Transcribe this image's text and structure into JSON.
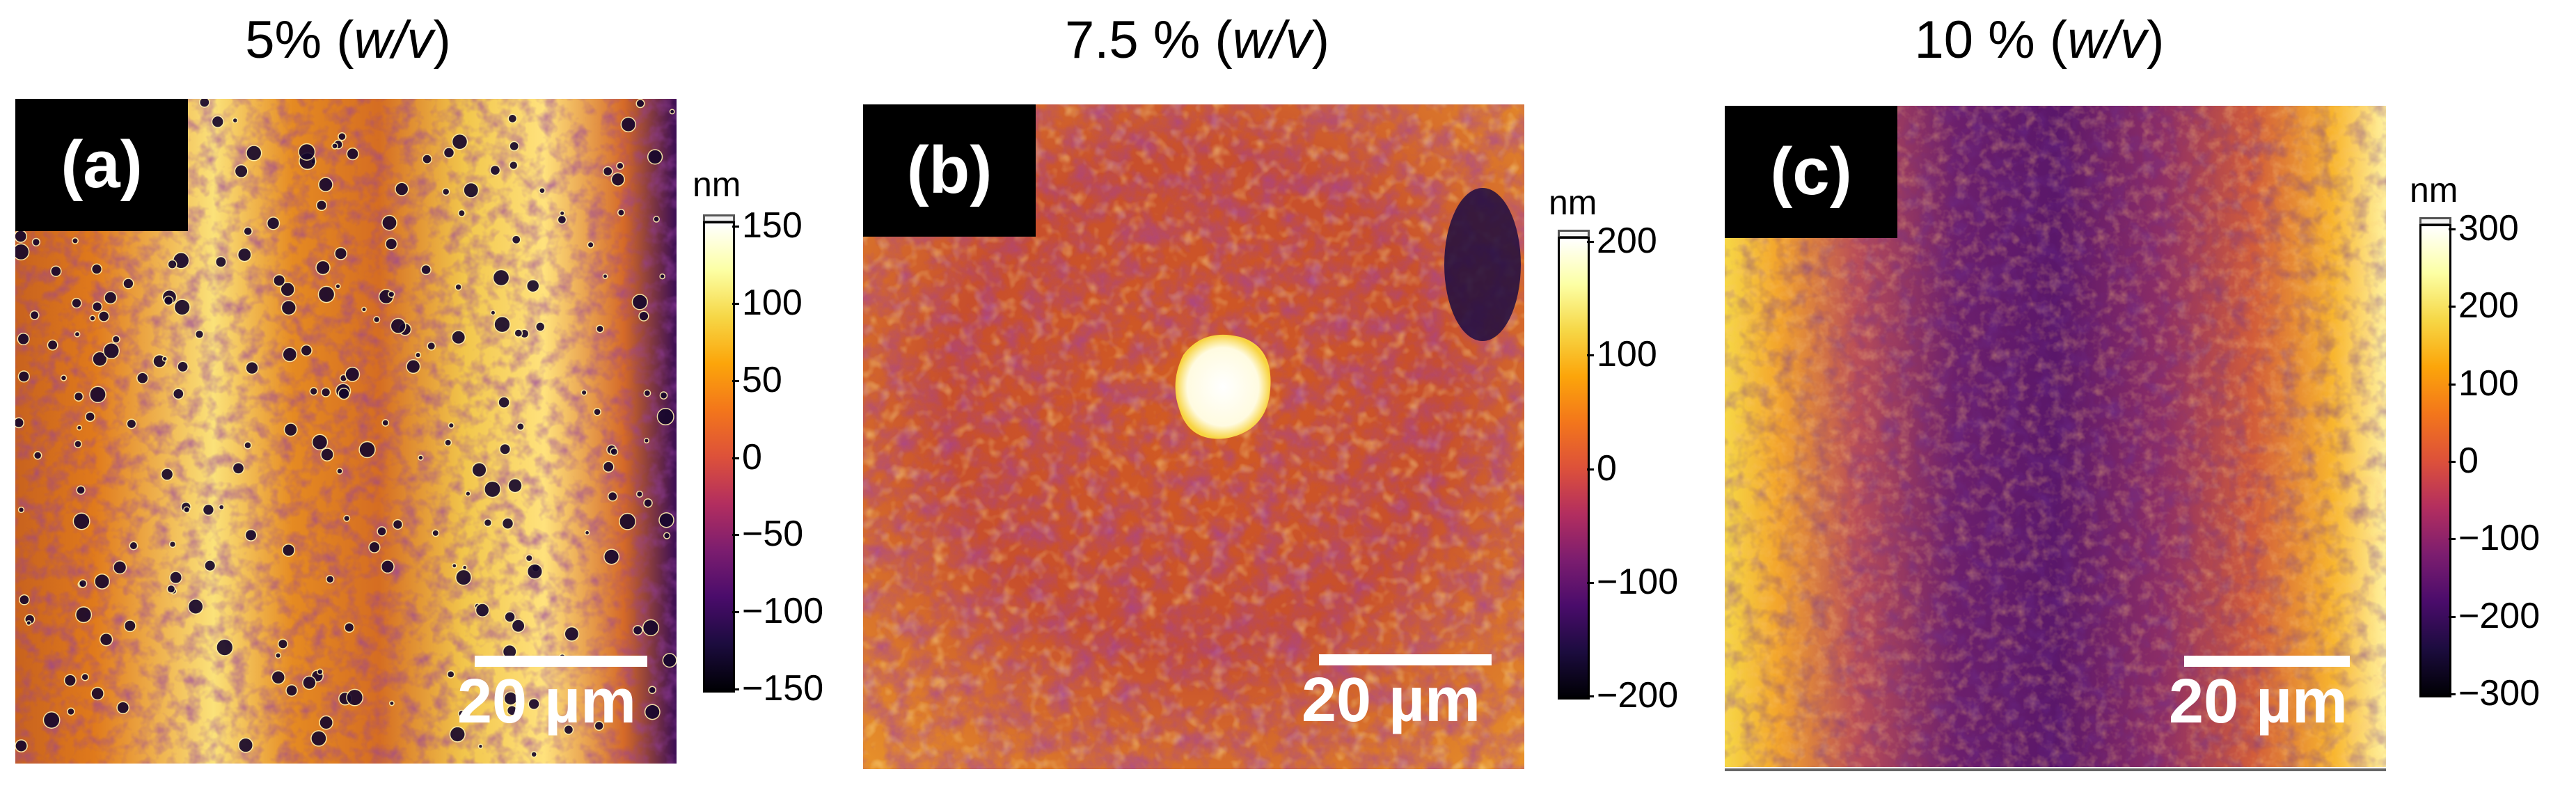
{
  "panels": [
    {
      "id": "a",
      "title_num": "5% (",
      "title_unit": "w/v",
      "title_close": ")",
      "label": "(a)",
      "scale_label": "20 µm",
      "colorbar": {
        "unit": "nm",
        "ticks": [
          "150",
          "100",
          "50",
          "0",
          "−50",
          "−100",
          "−150"
        ]
      },
      "ink": "#3b0a52"
    },
    {
      "id": "b",
      "title_num": "7.5 % (",
      "title_unit": "w/v",
      "title_close": ")",
      "label": "(b)",
      "scale_label": "20 µm",
      "colorbar": {
        "unit": "nm",
        "ticks": [
          "200",
          "100",
          "0",
          "−100",
          "−200"
        ]
      },
      "ink": "#c8621e"
    },
    {
      "id": "c",
      "title_num": "10 % (",
      "title_unit": "w/v",
      "title_close": ")",
      "label": "(c)",
      "scale_label": "20 µm",
      "colorbar": {
        "unit": "nm",
        "ticks": [
          "300",
          "200",
          "100",
          "0",
          "−100",
          "−200",
          "−300"
        ]
      },
      "ink": "#6a1a6e"
    }
  ],
  "colormap": [
    "#000004",
    "#1c0c3f",
    "#4a0c6b",
    "#7c1d6f",
    "#b32e5f",
    "#dd513a",
    "#f3761b",
    "#fca50a",
    "#f6d746",
    "#fcffa4",
    "#ffffff"
  ]
}
